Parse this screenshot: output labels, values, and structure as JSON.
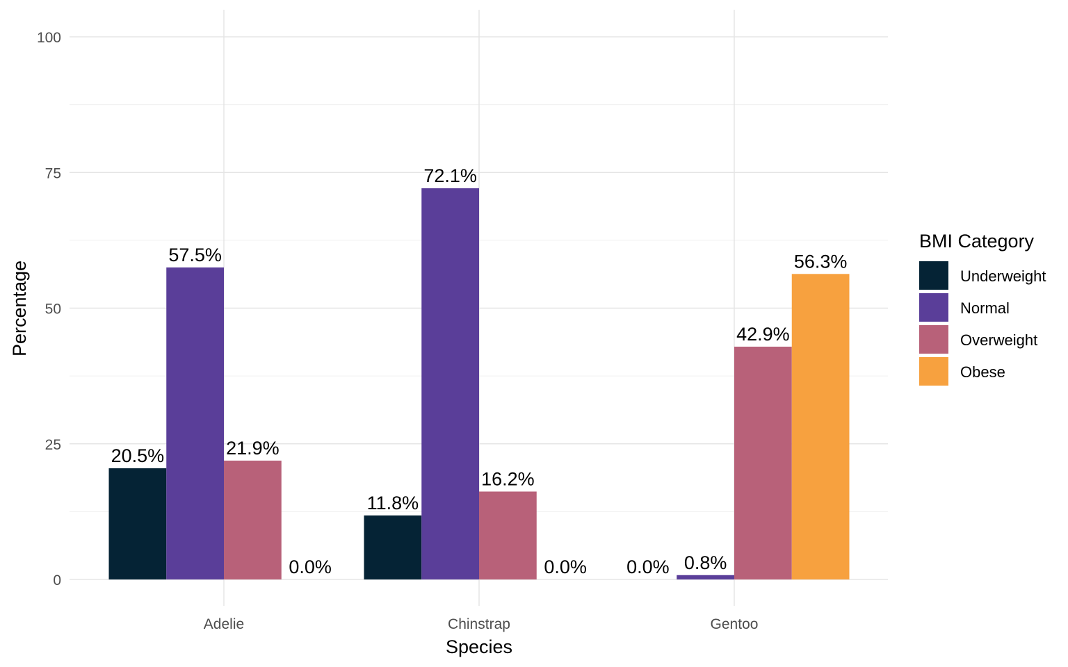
{
  "chart_data": {
    "type": "bar",
    "title": "",
    "xlabel": "Species",
    "ylabel": "Percentage",
    "ylim": [
      0,
      100
    ],
    "yticks": [
      "0",
      "25",
      "50",
      "75",
      "100"
    ],
    "categories": [
      "Adelie",
      "Chinstrap",
      "Gentoo"
    ],
    "legend_title": "BMI Category",
    "legend_position": "right",
    "grid": true,
    "series": [
      {
        "name": "Underweight",
        "color": "#052335",
        "values": [
          20.5,
          11.8,
          0.0
        ],
        "labels": [
          "20.5%",
          "11.8%",
          "0.0%"
        ]
      },
      {
        "name": "Normal",
        "color": "#5a3e99",
        "values": [
          57.5,
          72.1,
          0.8
        ],
        "labels": [
          "57.5%",
          "72.1%",
          "0.8%"
        ]
      },
      {
        "name": "Overweight",
        "color": "#b86179",
        "values": [
          21.9,
          16.2,
          42.9
        ],
        "labels": [
          "21.9%",
          "16.2%",
          "42.9%"
        ]
      },
      {
        "name": "Obese",
        "color": "#f7a13f",
        "values": [
          0.0,
          0.0,
          56.3
        ],
        "labels": [
          "0.0%",
          "0.0%",
          "56.3%"
        ]
      }
    ]
  }
}
